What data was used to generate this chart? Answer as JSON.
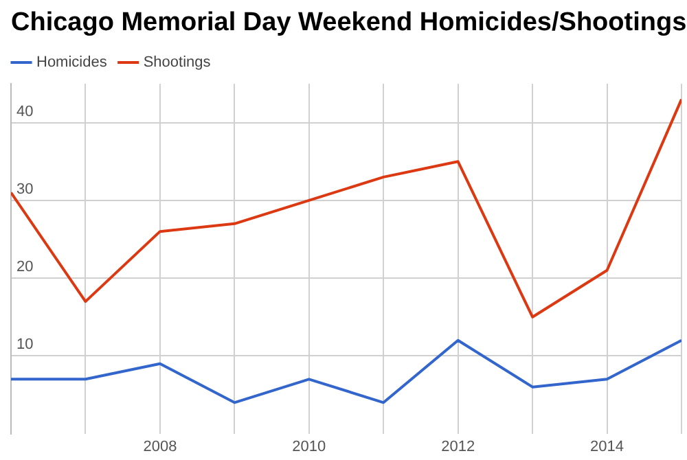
{
  "chart_data": {
    "type": "line",
    "title": "Chicago Memorial Day Weekend Homicides/Shootings",
    "x": [
      2006,
      2007,
      2008,
      2009,
      2010,
      2011,
      2012,
      2013,
      2014,
      2015
    ],
    "series": [
      {
        "name": "Homicides",
        "color": "#3366cc",
        "values": [
          7,
          7,
          9,
          4,
          7,
          4,
          12,
          6,
          7,
          12
        ]
      },
      {
        "name": "Shootings",
        "color": "#dc3912",
        "values": [
          31,
          17,
          26,
          27,
          30,
          33,
          35,
          15,
          21,
          43
        ]
      }
    ],
    "xlim": [
      2006,
      2015
    ],
    "xticks": [
      {
        "value": 2006,
        "label": null
      },
      {
        "value": 2007,
        "label": null
      },
      2008,
      {
        "value": 2009,
        "label": null
      },
      2010,
      {
        "value": 2011,
        "label": null
      },
      2012,
      {
        "value": 2013,
        "label": null
      },
      2014,
      {
        "value": 2015,
        "label": null
      }
    ],
    "ylim": [
      0,
      45
    ],
    "yticks": [
      10,
      20,
      30,
      40
    ],
    "grid": true,
    "legend": "top left",
    "marker": "none",
    "line_style": "solid"
  }
}
